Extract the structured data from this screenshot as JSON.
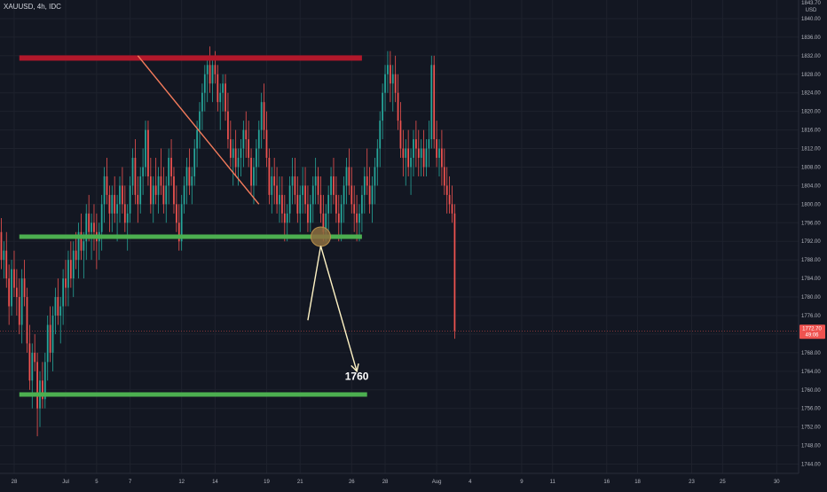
{
  "header": {
    "symbol": "XAUUSD, 4h, IDC"
  },
  "price_scale": {
    "currency": "USD",
    "top_clipped": "1843.70",
    "last_price": "1772.70",
    "countdown": "49:06"
  },
  "colors": {
    "background": "#131722",
    "up_candle": "#26a69a",
    "down_candle": "#ef5350",
    "resistance": "#b2182b",
    "support": "#4caf50",
    "trendline": "#f57c5c",
    "projection": "#fff3c4",
    "circle_fill": "#8d6e3f",
    "price_line": "#ef5350"
  },
  "chart_data": {
    "type": "candlestick",
    "symbol": "XAUUSD",
    "timeframe": "4h",
    "source": "IDC",
    "ylim": [
      1742,
      1844
    ],
    "y_ticks": [
      1744,
      1748,
      1752,
      1756,
      1760,
      1764,
      1768,
      1772,
      1776,
      1780,
      1784,
      1788,
      1792,
      1796,
      1800,
      1804,
      1808,
      1812,
      1816,
      1820,
      1824,
      1828,
      1832,
      1836,
      1840
    ],
    "x_ticks": [
      {
        "label": "28",
        "bar": 5
      },
      {
        "label": "Jul",
        "bar": 25
      },
      {
        "label": "5",
        "bar": 37
      },
      {
        "label": "7",
        "bar": 50
      },
      {
        "label": "12",
        "bar": 70
      },
      {
        "label": "14",
        "bar": 83
      },
      {
        "label": "19",
        "bar": 103
      },
      {
        "label": "21",
        "bar": 116
      },
      {
        "label": "26",
        "bar": 136
      },
      {
        "label": "28",
        "bar": 149
      },
      {
        "label": "Aug",
        "bar": 169
      },
      {
        "label": "4",
        "bar": 182
      },
      {
        "label": "9",
        "bar": 202
      },
      {
        "label": "11",
        "bar": 214
      },
      {
        "label": "16",
        "bar": 235
      },
      {
        "label": "18",
        "bar": 247
      },
      {
        "label": "23",
        "bar": 268
      },
      {
        "label": "25",
        "bar": 280
      },
      {
        "label": "30",
        "bar": 301
      }
    ],
    "bars_visible": 310,
    "last_close": 1772.7,
    "candles": [
      [
        1794,
        1797,
        1786,
        1788
      ],
      [
        1788,
        1792,
        1784,
        1790
      ],
      [
        1790,
        1794,
        1782,
        1784
      ],
      [
        1784,
        1787,
        1774,
        1778
      ],
      [
        1778,
        1788,
        1776,
        1786
      ],
      [
        1786,
        1790,
        1780,
        1782
      ],
      [
        1782,
        1786,
        1776,
        1780
      ],
      [
        1780,
        1784,
        1772,
        1774
      ],
      [
        1774,
        1786,
        1770,
        1784
      ],
      [
        1784,
        1788,
        1778,
        1780
      ],
      [
        1780,
        1782,
        1768,
        1770
      ],
      [
        1770,
        1774,
        1760,
        1762
      ],
      [
        1762,
        1770,
        1756,
        1768
      ],
      [
        1768,
        1772,
        1764,
        1766
      ],
      [
        1766,
        1768,
        1750,
        1756
      ],
      [
        1756,
        1764,
        1752,
        1762
      ],
      [
        1762,
        1766,
        1756,
        1758
      ],
      [
        1758,
        1768,
        1756,
        1766
      ],
      [
        1766,
        1776,
        1762,
        1774
      ],
      [
        1774,
        1778,
        1766,
        1768
      ],
      [
        1768,
        1778,
        1764,
        1776
      ],
      [
        1776,
        1782,
        1772,
        1780
      ],
      [
        1780,
        1784,
        1774,
        1776
      ],
      [
        1776,
        1780,
        1770,
        1778
      ],
      [
        1778,
        1786,
        1774,
        1784
      ],
      [
        1784,
        1788,
        1778,
        1782
      ],
      [
        1782,
        1790,
        1778,
        1788
      ],
      [
        1788,
        1792,
        1782,
        1784
      ],
      [
        1784,
        1792,
        1780,
        1790
      ],
      [
        1790,
        1794,
        1786,
        1788
      ],
      [
        1788,
        1796,
        1784,
        1794
      ],
      [
        1794,
        1798,
        1788,
        1790
      ],
      [
        1790,
        1794,
        1784,
        1792
      ],
      [
        1792,
        1800,
        1788,
        1798
      ],
      [
        1798,
        1802,
        1792,
        1794
      ],
      [
        1794,
        1798,
        1788,
        1796
      ],
      [
        1796,
        1800,
        1790,
        1794
      ],
      [
        1794,
        1798,
        1786,
        1792
      ],
      [
        1792,
        1796,
        1788,
        1794
      ],
      [
        1794,
        1802,
        1790,
        1800
      ],
      [
        1800,
        1808,
        1796,
        1806
      ],
      [
        1806,
        1810,
        1800,
        1802
      ],
      [
        1802,
        1804,
        1794,
        1798
      ],
      [
        1798,
        1804,
        1794,
        1802
      ],
      [
        1802,
        1806,
        1796,
        1798
      ],
      [
        1798,
        1802,
        1792,
        1800
      ],
      [
        1800,
        1806,
        1796,
        1804
      ],
      [
        1804,
        1808,
        1798,
        1800
      ],
      [
        1800,
        1804,
        1794,
        1796
      ],
      [
        1796,
        1800,
        1790,
        1798
      ],
      [
        1798,
        1806,
        1796,
        1804
      ],
      [
        1804,
        1812,
        1802,
        1810
      ],
      [
        1810,
        1814,
        1800,
        1802
      ],
      [
        1802,
        1806,
        1796,
        1800
      ],
      [
        1800,
        1808,
        1798,
        1806
      ],
      [
        1806,
        1812,
        1802,
        1808
      ],
      [
        1808,
        1818,
        1806,
        1816
      ],
      [
        1816,
        1818,
        1804,
        1806
      ],
      [
        1806,
        1810,
        1798,
        1800
      ],
      [
        1800,
        1806,
        1796,
        1804
      ],
      [
        1804,
        1810,
        1800,
        1802
      ],
      [
        1802,
        1808,
        1798,
        1806
      ],
      [
        1806,
        1812,
        1802,
        1804
      ],
      [
        1804,
        1808,
        1798,
        1800
      ],
      [
        1800,
        1806,
        1796,
        1804
      ],
      [
        1804,
        1812,
        1800,
        1810
      ],
      [
        1810,
        1814,
        1804,
        1806
      ],
      [
        1806,
        1808,
        1798,
        1800
      ],
      [
        1800,
        1804,
        1794,
        1796
      ],
      [
        1796,
        1800,
        1790,
        1792
      ],
      [
        1792,
        1802,
        1790,
        1800
      ],
      [
        1800,
        1806,
        1798,
        1804
      ],
      [
        1804,
        1810,
        1800,
        1808
      ],
      [
        1808,
        1812,
        1802,
        1804
      ],
      [
        1804,
        1808,
        1800,
        1806
      ],
      [
        1806,
        1814,
        1804,
        1812
      ],
      [
        1812,
        1818,
        1808,
        1816
      ],
      [
        1816,
        1822,
        1812,
        1820
      ],
      [
        1820,
        1826,
        1816,
        1824
      ],
      [
        1824,
        1830,
        1820,
        1828
      ],
      [
        1828,
        1832,
        1822,
        1830
      ],
      [
        1830,
        1834,
        1824,
        1826
      ],
      [
        1826,
        1832,
        1822,
        1830
      ],
      [
        1830,
        1833,
        1826,
        1828
      ],
      [
        1828,
        1830,
        1820,
        1822
      ],
      [
        1822,
        1826,
        1816,
        1824
      ],
      [
        1824,
        1828,
        1820,
        1826
      ],
      [
        1826,
        1828,
        1818,
        1820
      ],
      [
        1820,
        1824,
        1812,
        1814
      ],
      [
        1814,
        1818,
        1808,
        1810
      ],
      [
        1810,
        1814,
        1804,
        1812
      ],
      [
        1812,
        1816,
        1806,
        1808
      ],
      [
        1808,
        1812,
        1804,
        1810
      ],
      [
        1810,
        1814,
        1806,
        1812
      ],
      [
        1812,
        1818,
        1808,
        1816
      ],
      [
        1816,
        1820,
        1810,
        1814
      ],
      [
        1814,
        1818,
        1808,
        1810
      ],
      [
        1810,
        1812,
        1802,
        1804
      ],
      [
        1804,
        1810,
        1800,
        1808
      ],
      [
        1808,
        1814,
        1804,
        1812
      ],
      [
        1812,
        1818,
        1808,
        1816
      ],
      [
        1816,
        1824,
        1812,
        1822
      ],
      [
        1822,
        1826,
        1814,
        1816
      ],
      [
        1816,
        1820,
        1808,
        1810
      ],
      [
        1810,
        1812,
        1800,
        1802
      ],
      [
        1802,
        1808,
        1798,
        1806
      ],
      [
        1806,
        1810,
        1800,
        1804
      ],
      [
        1804,
        1808,
        1798,
        1800
      ],
      [
        1800,
        1806,
        1796,
        1802
      ],
      [
        1802,
        1806,
        1796,
        1798
      ],
      [
        1798,
        1802,
        1792,
        1796
      ],
      [
        1796,
        1800,
        1792,
        1798
      ],
      [
        1798,
        1806,
        1796,
        1804
      ],
      [
        1804,
        1810,
        1800,
        1806
      ],
      [
        1806,
        1810,
        1800,
        1802
      ],
      [
        1802,
        1806,
        1796,
        1798
      ],
      [
        1798,
        1804,
        1794,
        1802
      ],
      [
        1802,
        1808,
        1798,
        1804
      ],
      [
        1804,
        1808,
        1798,
        1800
      ],
      [
        1800,
        1804,
        1794,
        1796
      ],
      [
        1796,
        1802,
        1794,
        1800
      ],
      [
        1800,
        1806,
        1796,
        1804
      ],
      [
        1804,
        1810,
        1800,
        1806
      ],
      [
        1806,
        1808,
        1800,
        1802
      ],
      [
        1802,
        1806,
        1796,
        1798
      ],
      [
        1798,
        1802,
        1792,
        1794
      ],
      [
        1794,
        1800,
        1792,
        1798
      ],
      [
        1798,
        1804,
        1794,
        1802
      ],
      [
        1802,
        1808,
        1798,
        1806
      ],
      [
        1806,
        1810,
        1800,
        1802
      ],
      [
        1802,
        1806,
        1796,
        1798
      ],
      [
        1798,
        1802,
        1792,
        1796
      ],
      [
        1796,
        1802,
        1792,
        1800
      ],
      [
        1800,
        1806,
        1796,
        1804
      ],
      [
        1804,
        1810,
        1800,
        1808
      ],
      [
        1808,
        1812,
        1802,
        1804
      ],
      [
        1804,
        1808,
        1798,
        1800
      ],
      [
        1800,
        1804,
        1794,
        1798
      ],
      [
        1798,
        1802,
        1792,
        1796
      ],
      [
        1796,
        1800,
        1792,
        1798
      ],
      [
        1798,
        1804,
        1794,
        1802
      ],
      [
        1802,
        1808,
        1798,
        1806
      ],
      [
        1806,
        1812,
        1802,
        1804
      ],
      [
        1804,
        1808,
        1798,
        1800
      ],
      [
        1800,
        1806,
        1796,
        1804
      ],
      [
        1804,
        1810,
        1800,
        1808
      ],
      [
        1808,
        1814,
        1804,
        1812
      ],
      [
        1812,
        1820,
        1808,
        1818
      ],
      [
        1818,
        1826,
        1814,
        1824
      ],
      [
        1824,
        1830,
        1820,
        1828
      ],
      [
        1828,
        1833,
        1824,
        1830
      ],
      [
        1830,
        1833,
        1822,
        1826
      ],
      [
        1826,
        1830,
        1820,
        1828
      ],
      [
        1828,
        1832,
        1822,
        1824
      ],
      [
        1824,
        1828,
        1816,
        1818
      ],
      [
        1818,
        1822,
        1810,
        1812
      ],
      [
        1812,
        1816,
        1806,
        1810
      ],
      [
        1810,
        1814,
        1804,
        1812
      ],
      [
        1812,
        1816,
        1806,
        1808
      ],
      [
        1808,
        1812,
        1802,
        1810
      ],
      [
        1810,
        1816,
        1806,
        1814
      ],
      [
        1814,
        1818,
        1808,
        1812
      ],
      [
        1812,
        1816,
        1806,
        1810
      ],
      [
        1810,
        1814,
        1806,
        1812
      ],
      [
        1812,
        1816,
        1806,
        1808
      ],
      [
        1808,
        1814,
        1806,
        1812
      ],
      [
        1812,
        1818,
        1808,
        1814
      ],
      [
        1814,
        1832,
        1812,
        1830
      ],
      [
        1830,
        1832,
        1812,
        1814
      ],
      [
        1814,
        1818,
        1808,
        1810
      ],
      [
        1810,
        1814,
        1806,
        1812
      ],
      [
        1812,
        1816,
        1804,
        1808
      ],
      [
        1808,
        1812,
        1802,
        1804
      ],
      [
        1804,
        1808,
        1798,
        1802
      ],
      [
        1802,
        1806,
        1798,
        1800
      ],
      [
        1800,
        1804,
        1796,
        1798
      ],
      [
        1798,
        1800,
        1771,
        1772.7
      ]
    ],
    "annotations": [
      {
        "type": "horizontal_zone",
        "name": "resistance",
        "price": 1831.5,
        "from_bar": 7,
        "to_bar": 140
      },
      {
        "type": "horizontal_line",
        "name": "support",
        "price": 1793,
        "from_bar": 7,
        "to_bar": 140
      },
      {
        "type": "horizontal_line",
        "name": "target",
        "price": 1759,
        "from_bar": 7,
        "to_bar": 142
      },
      {
        "type": "trendline",
        "from": {
          "bar": 53,
          "price": 1832
        },
        "to": {
          "bar": 100,
          "price": 1800
        }
      },
      {
        "type": "circle",
        "bar": 124,
        "price": 1793
      },
      {
        "type": "arrow_path",
        "points": [
          {
            "bar": 119,
            "price": 1775
          },
          {
            "bar": 124,
            "price": 1791
          },
          {
            "bar": 138,
            "price": 1764
          }
        ]
      },
      {
        "type": "text",
        "label": "1760",
        "bar": 138,
        "price": 1762
      }
    ]
  }
}
